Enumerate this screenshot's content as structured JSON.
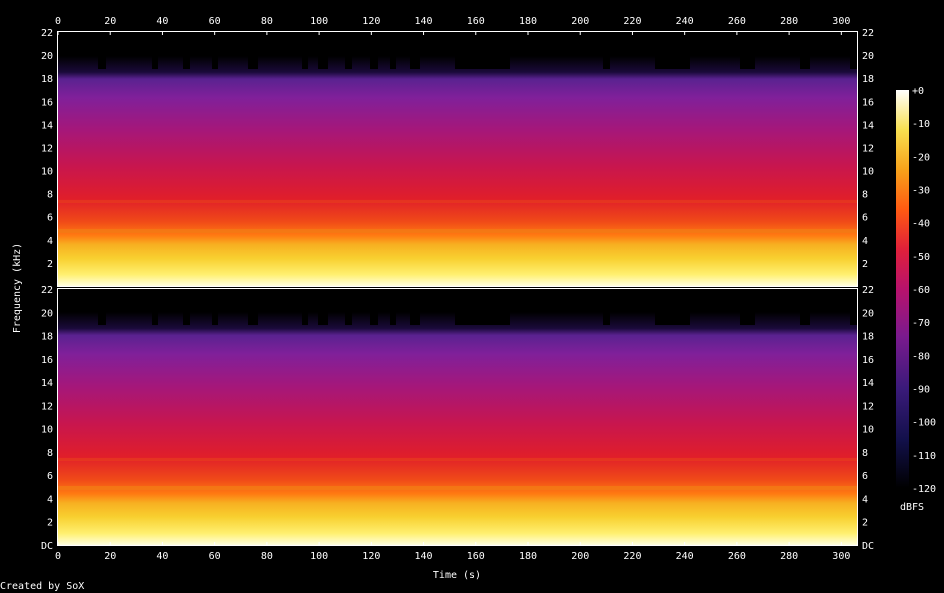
{
  "x_axis": {
    "label": "Time (s)",
    "ticks": [
      "0",
      "20",
      "40",
      "60",
      "80",
      "100",
      "120",
      "140",
      "160",
      "180",
      "200",
      "220",
      "240",
      "260",
      "280",
      "300"
    ]
  },
  "y_axis": {
    "label": "Frequency (kHz)",
    "top_channel_ticks": [
      "2",
      "4",
      "6",
      "8",
      "10",
      "12",
      "14",
      "16",
      "18",
      "20",
      "22"
    ],
    "bottom_channel_ticks": [
      "DC",
      "2",
      "4",
      "6",
      "8",
      "10",
      "12",
      "14",
      "16",
      "18",
      "20",
      "22"
    ]
  },
  "colorbar": {
    "unit": "dBFS",
    "ticks": [
      "+0",
      "-10",
      "-20",
      "-30",
      "-40",
      "-50",
      "-60",
      "-70",
      "-80",
      "-90",
      "-100",
      "-110",
      "-120"
    ]
  },
  "footer": {
    "credit": "Created by SoX"
  },
  "colors": {
    "background": "#000000",
    "loud": "#ffffd8",
    "yellow": "#f5c81a",
    "orange": "#ff6a10",
    "red": "#e81e2e",
    "magenta": "#b1127a",
    "purple": "#6f1f9c",
    "dark_blue": "#1a0a4a",
    "silence": "#000000"
  }
}
